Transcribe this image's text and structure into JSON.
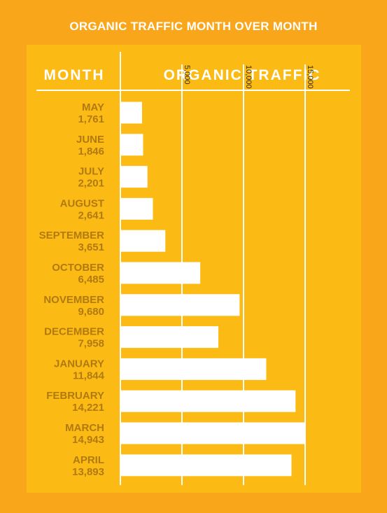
{
  "title": "ORGANIC TRAFFIC MONTH OVER MONTH",
  "headers": {
    "month": "MONTH",
    "traffic": "ORGANIC TRAFFIC"
  },
  "colors": {
    "background": "#F9A61B",
    "panel": "#FCBB14",
    "bar": "#FFFFFF",
    "label": "#B07A10",
    "line": "#FFFFFF"
  },
  "chart_data": {
    "type": "bar",
    "orientation": "horizontal",
    "title": "ORGANIC TRAFFIC MONTH OVER MONTH",
    "xlabel": "ORGANIC TRAFFIC",
    "ylabel": "MONTH",
    "categories": [
      "MAY",
      "JUNE",
      "JULY",
      "AUGUST",
      "SEPTEMBER",
      "OCTOBER",
      "NOVEMBER",
      "DECEMBER",
      "JANUARY",
      "FEBRUARY",
      "MARCH",
      "APRIL"
    ],
    "values": [
      1761,
      1846,
      2201,
      2641,
      3651,
      6485,
      9680,
      7958,
      11844,
      14221,
      14943,
      13893
    ],
    "value_labels": [
      "1,761",
      "1,846",
      "2,201",
      "2,641",
      "3,651",
      "6,485",
      "9,680",
      "7,958",
      "11,844",
      "14,221",
      "14,943",
      "13,893"
    ],
    "ticks": [
      5000,
      10000,
      15000
    ],
    "tick_labels": [
      "5,000",
      "10,000",
      "15,000"
    ],
    "xlim": [
      0,
      15000
    ],
    "grid": true
  }
}
